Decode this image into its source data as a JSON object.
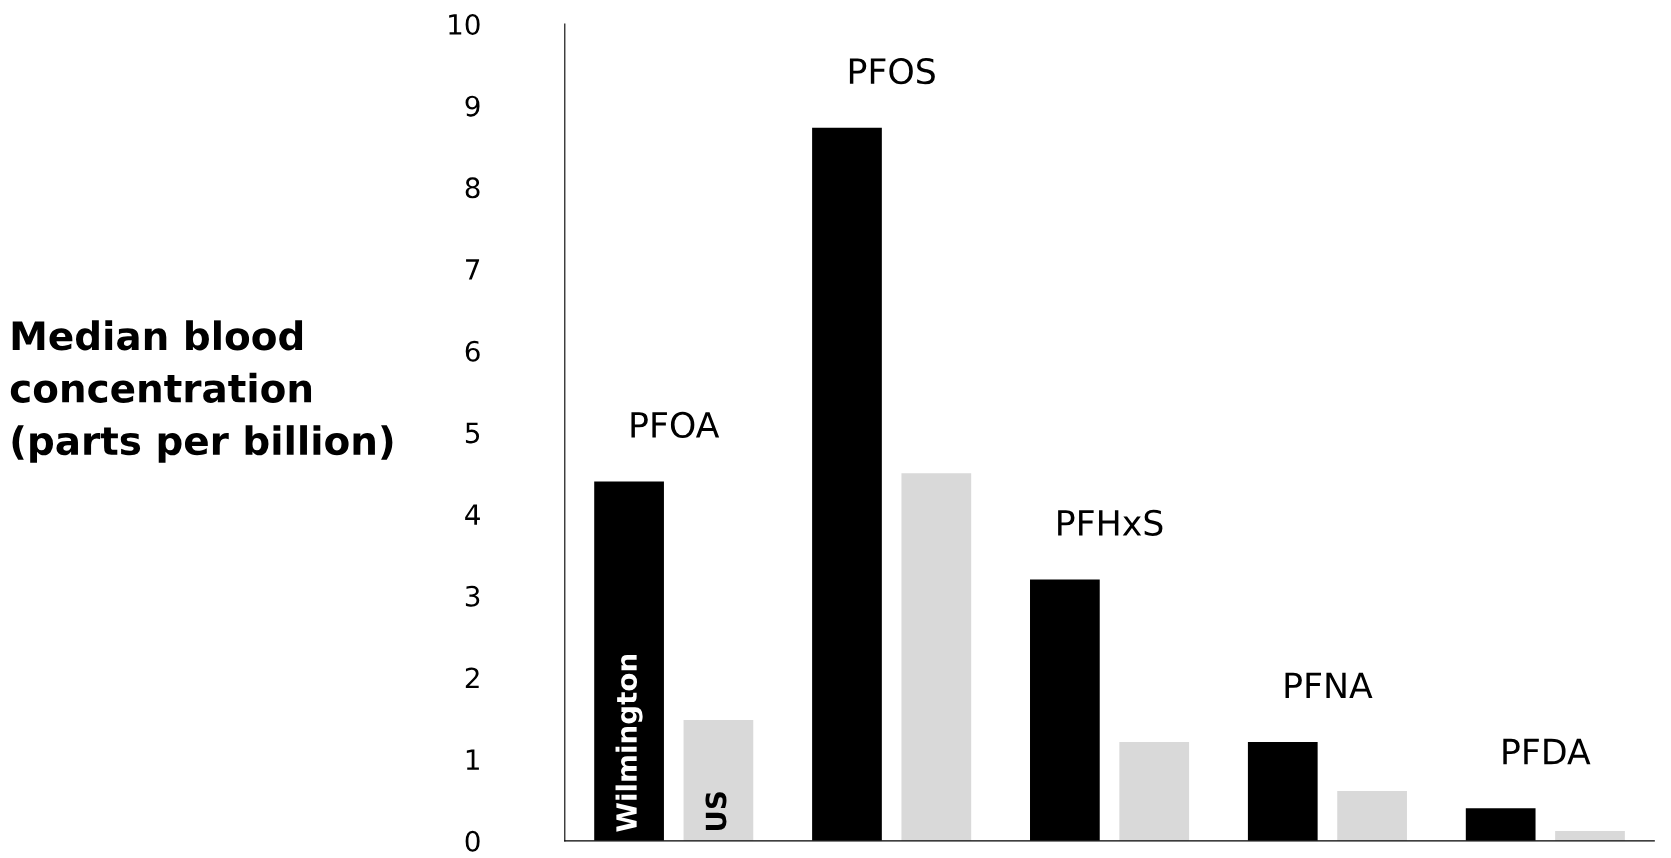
{
  "chart_data": {
    "type": "bar",
    "ylabel": "Median blood\nconcentration\n(parts per billion)",
    "categories": [
      "PFOA",
      "PFOS",
      "PFHxS",
      "PFNA",
      "PFDA"
    ],
    "series": [
      {
        "name": "Wilmington",
        "color": "#000000",
        "values": [
          4.4,
          8.73,
          3.2,
          1.21,
          0.4
        ]
      },
      {
        "name": "US",
        "color": "#d9d9d9",
        "values": [
          1.48,
          4.5,
          1.21,
          0.61,
          0.12
        ]
      }
    ],
    "ylim": [
      0,
      10
    ],
    "yticks": [
      0,
      1,
      2,
      3,
      4,
      5,
      6,
      7,
      8,
      9,
      10
    ],
    "grid": false,
    "legend": false,
    "tick_labels": "y"
  }
}
